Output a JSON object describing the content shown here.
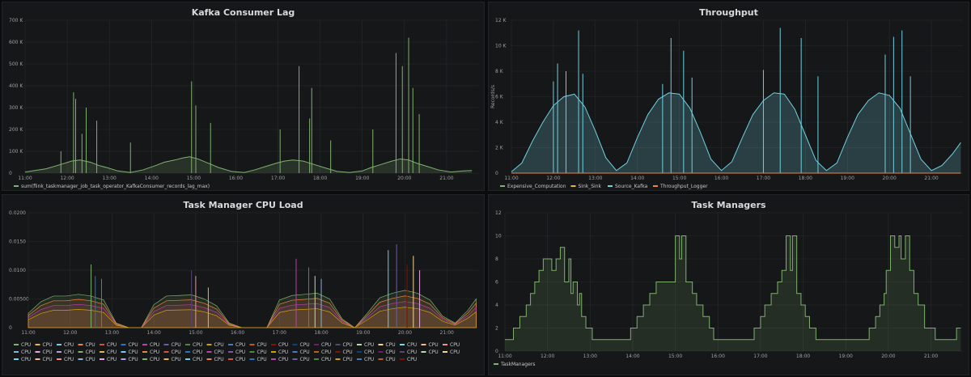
{
  "chart_data": [
    {
      "type": "line",
      "title": "Kafka Consumer Lag",
      "ylabel": "",
      "ylim": [
        0,
        700000
      ],
      "y_ticks": [
        "0",
        "100 K",
        "200 K",
        "300 K",
        "400 K",
        "500 K",
        "600 K",
        "700 K"
      ],
      "x_ticks": [
        "11:00",
        "12:00",
        "13:00",
        "14:00",
        "15:00",
        "16:00",
        "17:00",
        "18:00",
        "19:00",
        "20:00",
        "21:00"
      ],
      "legend_position": "bottom-left",
      "grid": true,
      "series": [
        {
          "name": "sum(flink_taskmanager_job_task_operator_KafkaConsumer_records_lag_max)",
          "color": "#7eb26d",
          "x_hours": [
            11.0,
            11.5,
            11.85,
            12.1,
            12.3,
            12.55,
            12.75,
            12.95,
            13.2,
            13.5,
            13.8,
            14.1,
            14.3,
            14.55,
            14.75,
            14.9,
            15.1,
            15.35,
            15.6,
            15.9,
            16.2,
            16.45,
            16.7,
            16.95,
            17.15,
            17.35,
            17.6,
            17.85,
            18.1,
            18.4,
            18.7,
            19.0,
            19.2,
            19.45,
            19.7,
            19.9,
            20.1,
            20.3,
            20.55,
            20.8,
            21.1,
            21.4,
            21.6
          ],
          "values": [
            5000,
            20000,
            40000,
            55000,
            60000,
            50000,
            35000,
            25000,
            10000,
            3000,
            15000,
            35000,
            50000,
            60000,
            70000,
            75000,
            65000,
            45000,
            25000,
            8000,
            3000,
            15000,
            30000,
            45000,
            55000,
            60000,
            55000,
            40000,
            25000,
            8000,
            3000,
            10000,
            25000,
            40000,
            55000,
            65000,
            60000,
            45000,
            30000,
            15000,
            5000,
            10000,
            12000
          ],
          "spikes_x": [
            11.85,
            12.15,
            12.2,
            12.35,
            12.45,
            12.7,
            13.5,
            14.95,
            15.05,
            15.4,
            17.05,
            17.5,
            17.75,
            17.8,
            18.25,
            19.25,
            19.8,
            19.95,
            20.1,
            20.2,
            20.35
          ],
          "spikes_y": [
            100000,
            370000,
            340000,
            180000,
            300000,
            240000,
            140000,
            420000,
            310000,
            230000,
            200000,
            490000,
            250000,
            390000,
            150000,
            200000,
            550000,
            490000,
            620000,
            390000,
            270000
          ]
        }
      ]
    },
    {
      "type": "area",
      "title": "Throughput",
      "ylabel": "Records/s",
      "ylim": [
        0,
        12000
      ],
      "y_ticks": [
        "0",
        "2 K",
        "4 K",
        "6 K",
        "8 K",
        "10 K",
        "12 K"
      ],
      "x_ticks": [
        "11:00",
        "12:00",
        "13:00",
        "14:00",
        "15:00",
        "16:00",
        "17:00",
        "18:00",
        "19:00",
        "20:00",
        "21:00"
      ],
      "legend_position": "bottom-left",
      "grid": true,
      "series": [
        {
          "name": "Expensive_Computation",
          "color": "#7eb26d",
          "x_hours": [
            11.0,
            11.5
          ],
          "values": [
            0,
            0
          ]
        },
        {
          "name": "Sink_Sink",
          "color": "#eab839",
          "x_hours": [
            11.0,
            11.5
          ],
          "values": [
            0,
            0
          ]
        },
        {
          "name": "Source_Kafka",
          "color": "#6ed0e0",
          "x_hours": [
            11.0,
            11.25,
            11.5,
            11.75,
            12.0,
            12.25,
            12.5,
            12.75,
            13.0,
            13.25,
            13.5,
            13.75,
            14.0,
            14.25,
            14.5,
            14.75,
            15.0,
            15.25,
            15.5,
            15.75,
            16.0,
            16.25,
            16.5,
            16.75,
            17.0,
            17.25,
            17.5,
            17.75,
            18.0,
            18.25,
            18.5,
            18.75,
            19.0,
            19.25,
            19.5,
            19.75,
            20.0,
            20.25,
            20.5,
            20.75,
            21.0,
            21.25,
            21.5,
            21.7
          ],
          "values": [
            100,
            800,
            2500,
            4000,
            5300,
            6000,
            6200,
            5200,
            3300,
            1200,
            200,
            800,
            2800,
            4600,
            5800,
            6300,
            6200,
            5100,
            3200,
            1100,
            200,
            900,
            2800,
            4600,
            5700,
            6300,
            6200,
            5000,
            3000,
            1000,
            200,
            800,
            2800,
            4600,
            5700,
            6300,
            6100,
            5100,
            3100,
            1100,
            200,
            600,
            1500,
            2400
          ],
          "spikes_x": [
            12.0,
            12.1,
            12.3,
            12.6,
            12.7,
            14.6,
            14.8,
            15.1,
            15.3,
            17.0,
            17.4,
            17.9,
            18.3,
            19.9,
            20.1,
            20.3,
            20.5
          ],
          "spikes_y": [
            7200,
            8600,
            8000,
            11200,
            7800,
            7000,
            10600,
            9600,
            7500,
            8100,
            11400,
            10600,
            7600,
            9300,
            10700,
            11200,
            7600
          ]
        },
        {
          "name": "Throughput_Logger",
          "color": "#ef843c",
          "x_hours": [
            11.0,
            21.7
          ],
          "values": [
            0,
            0
          ]
        }
      ]
    },
    {
      "type": "line",
      "title": "Task Manager CPU Load",
      "ylabel": "",
      "ylim": [
        0,
        0.02
      ],
      "y_ticks": [
        "0",
        "0.00500",
        "0.0100",
        "0.0150",
        "0.0200"
      ],
      "x_ticks": [
        "11:00",
        "12:00",
        "13:00",
        "14:00",
        "15:00",
        "16:00",
        "17:00",
        "18:00",
        "19:00",
        "20:00",
        "21:00"
      ],
      "legend_position": "bottom",
      "grid": true,
      "series_count": 61,
      "series_name": "CPU",
      "envelope_x_hours": [
        11.0,
        11.3,
        11.6,
        11.9,
        12.2,
        12.5,
        12.8,
        13.1,
        13.4,
        13.7,
        14.0,
        14.3,
        14.6,
        14.9,
        15.2,
        15.5,
        15.8,
        16.1,
        16.4,
        16.7,
        17.0,
        17.3,
        17.6,
        17.9,
        18.2,
        18.5,
        18.8,
        19.1,
        19.4,
        19.7,
        20.0,
        20.3,
        20.6,
        20.9,
        21.2,
        21.5,
        21.7
      ],
      "envelope_values": [
        0.0025,
        0.0045,
        0.0055,
        0.0055,
        0.0058,
        0.0055,
        0.0048,
        0.0008,
        0.0,
        0.0,
        0.004,
        0.0055,
        0.0056,
        0.0057,
        0.005,
        0.0038,
        0.0008,
        0.0,
        0.0,
        0.0,
        0.0048,
        0.0056,
        0.0058,
        0.006,
        0.005,
        0.0015,
        0.0,
        0.0025,
        0.0052,
        0.006,
        0.0065,
        0.006,
        0.0048,
        0.002,
        0.0008,
        0.003,
        0.005
      ],
      "spikes_x": [
        12.5,
        12.6,
        12.75,
        14.9,
        15.0,
        15.3,
        17.4,
        17.7,
        17.85,
        18.0,
        19.6,
        19.8,
        20.05,
        20.2,
        20.35
      ],
      "spikes_y": [
        0.011,
        0.009,
        0.0085,
        0.01,
        0.009,
        0.007,
        0.012,
        0.0105,
        0.009,
        0.0085,
        0.0135,
        0.0145,
        0.011,
        0.0125,
        0.01
      ]
    },
    {
      "type": "line",
      "title": "Task Managers",
      "ylabel": "",
      "ylim": [
        0,
        12
      ],
      "y_ticks": [
        "0",
        "2",
        "4",
        "6",
        "8",
        "10",
        "12"
      ],
      "x_ticks": [
        "11:00",
        "12:00",
        "13:00",
        "14:00",
        "15:00",
        "16:00",
        "17:00",
        "18:00",
        "19:00",
        "20:00",
        "21:00"
      ],
      "legend_position": "bottom-left",
      "grid": true,
      "series": [
        {
          "name": "TaskManagers",
          "color": "#7eb26d",
          "x_hours": [
            11.0,
            11.2,
            11.35,
            11.5,
            11.6,
            11.7,
            11.8,
            11.9,
            12.0,
            12.1,
            12.2,
            12.3,
            12.4,
            12.5,
            12.55,
            12.6,
            12.7,
            12.75,
            12.8,
            12.9,
            13.05,
            13.2,
            13.8,
            13.95,
            14.1,
            14.25,
            14.4,
            14.55,
            14.75,
            14.9,
            15.0,
            15.1,
            15.15,
            15.25,
            15.4,
            15.5,
            15.65,
            15.8,
            15.9,
            16.7,
            16.85,
            17.0,
            17.1,
            17.25,
            17.4,
            17.5,
            17.6,
            17.7,
            17.75,
            17.85,
            17.95,
            18.05,
            18.15,
            18.3,
            18.5,
            19.4,
            19.55,
            19.7,
            19.8,
            19.9,
            19.95,
            20.05,
            20.15,
            20.25,
            20.3,
            20.4,
            20.5,
            20.6,
            20.7,
            20.85,
            21.1,
            21.5,
            21.6,
            21.7
          ],
          "values": [
            1,
            2,
            3,
            4,
            5,
            6,
            7,
            8,
            8,
            7,
            8,
            9,
            6,
            8,
            5,
            6,
            4,
            5,
            3,
            2,
            1,
            1,
            1,
            2,
            3,
            4,
            5,
            6,
            6,
            6,
            10,
            8,
            10,
            6,
            5,
            4,
            3,
            2,
            1,
            1,
            2,
            3,
            4,
            5,
            6,
            7,
            10,
            7,
            10,
            5,
            4,
            3,
            2,
            1,
            1,
            1,
            2,
            3,
            4,
            5,
            7,
            10,
            9,
            10,
            8,
            10,
            7,
            5,
            4,
            2,
            1,
            1,
            2,
            2
          ]
        }
      ]
    }
  ]
}
